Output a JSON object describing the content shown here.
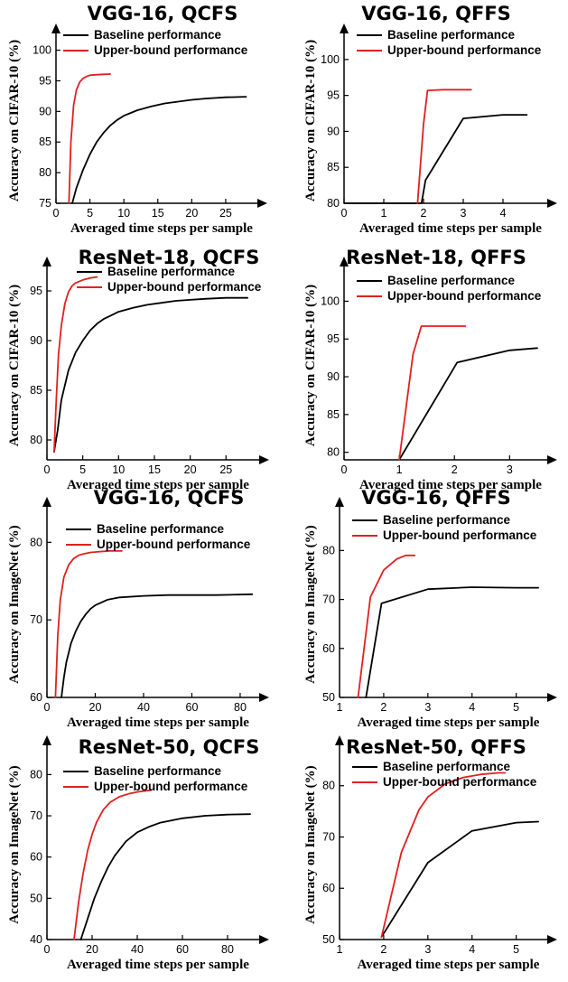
{
  "colors": {
    "baseline": "#000000",
    "upper_bound": "#e02020",
    "axis": "#000000"
  },
  "chart_data": [
    {
      "type": "line",
      "title": "VGG-16, QCFS",
      "xlabel": "Averaged time steps per sample",
      "ylabel": "Accuracy on CIFAR-10 (%)",
      "xlim": [
        0,
        29
      ],
      "ylim": [
        75,
        102
      ],
      "xticks": [
        0,
        5,
        10,
        15,
        20,
        25
      ],
      "yticks": [
        75,
        80,
        85,
        90,
        95,
        100
      ],
      "grid": false,
      "legend_position": "top",
      "series": [
        {
          "name": "Baseline performance",
          "color": "#000000",
          "x": [
            2.4,
            3,
            4,
            5,
            6,
            7,
            8,
            9,
            10,
            12,
            14,
            16,
            18,
            20,
            22,
            25,
            28
          ],
          "y": [
            75,
            77.5,
            80.5,
            83,
            85,
            86.5,
            87.7,
            88.6,
            89.3,
            90.2,
            90.8,
            91.3,
            91.6,
            91.9,
            92.1,
            92.3,
            92.4
          ]
        },
        {
          "name": "Upper-bound performance",
          "color": "#e02020",
          "x": [
            1.9,
            2.2,
            2.6,
            3.0,
            3.5,
            4.0,
            4.5,
            5.0,
            6.0,
            7.0,
            8.0
          ],
          "y": [
            75,
            85,
            91,
            93.5,
            94.8,
            95.4,
            95.7,
            95.9,
            96.0,
            96.05,
            96.1
          ]
        }
      ]
    },
    {
      "type": "line",
      "title": "VGG-16, QFFS",
      "xlabel": "Averaged time steps per sample",
      "ylabel": "Accuracy on CIFAR-10 (%)",
      "xlim": [
        0,
        5
      ],
      "ylim": [
        80,
        103
      ],
      "xticks": [
        0,
        1,
        2,
        3,
        4
      ],
      "yticks": [
        80,
        85,
        90,
        95,
        100
      ],
      "grid": false,
      "legend_position": "top",
      "series": [
        {
          "name": "Baseline performance",
          "color": "#000000",
          "x": [
            0,
            1.95,
            2.05,
            3,
            4,
            4.6
          ],
          "y": [
            80,
            80,
            83.2,
            91.8,
            92.3,
            92.3
          ]
        },
        {
          "name": "Upper-bound performance",
          "color": "#e02020",
          "x": [
            1.85,
            2.0,
            2.1,
            2.5,
            3.2
          ],
          "y": [
            80,
            91,
            95.7,
            95.8,
            95.8
          ]
        }
      ]
    },
    {
      "type": "line",
      "title": "ResNet-18, QCFS",
      "xlabel": "Averaged time steps per sample",
      "ylabel": "Accuracy on CIFAR-10 (%)",
      "xlim": [
        0,
        29
      ],
      "ylim": [
        78,
        97
      ],
      "xticks": [
        0,
        5,
        10,
        15,
        20,
        25
      ],
      "yticks": [
        80,
        85,
        90,
        95
      ],
      "grid": false,
      "legend_position": "top",
      "series": [
        {
          "name": "Baseline performance",
          "color": "#000000",
          "x": [
            1.0,
            1.5,
            2,
            3,
            4,
            5,
            6,
            7,
            8,
            10,
            12,
            14,
            16,
            18,
            20,
            22,
            25,
            28
          ],
          "y": [
            78.8,
            81,
            84,
            87,
            88.8,
            90,
            91,
            91.7,
            92.2,
            92.9,
            93.3,
            93.6,
            93.8,
            94.0,
            94.1,
            94.2,
            94.3,
            94.3
          ]
        },
        {
          "name": "Upper-bound performance",
          "color": "#e02020",
          "x": [
            1.0,
            1.3,
            1.6,
            2.0,
            2.5,
            3.0,
            3.5,
            4.0,
            5.0,
            6.0,
            7.0
          ],
          "y": [
            78.8,
            84,
            88.5,
            91.5,
            93.7,
            94.9,
            95.5,
            95.8,
            96.1,
            96.3,
            96.4
          ]
        }
      ]
    },
    {
      "type": "line",
      "title": "ResNet-18, QFFS",
      "xlabel": "Averaged time steps per sample",
      "ylabel": "Accuracy on CIFAR-10 (%)",
      "xlim": [
        0,
        3.6
      ],
      "ylim": [
        79,
        104
      ],
      "xticks": [
        0,
        1,
        2,
        3
      ],
      "yticks": [
        80,
        85,
        90,
        95,
        100
      ],
      "grid": false,
      "legend_position": "top",
      "series": [
        {
          "name": "Baseline performance",
          "color": "#000000",
          "x": [
            1.0,
            2.05,
            3.0,
            3.5
          ],
          "y": [
            79,
            91.9,
            93.5,
            93.8
          ]
        },
        {
          "name": "Upper-bound performance",
          "color": "#e02020",
          "x": [
            1.0,
            1.25,
            1.4,
            2.2
          ],
          "y": [
            79,
            93,
            96.7,
            96.7
          ]
        }
      ]
    },
    {
      "type": "line",
      "title": "VGG-16, QCFS",
      "xlabel": "Averaged time steps per sample",
      "ylabel": "Accuracy on ImageNet (%)",
      "xlim": [
        0,
        86
      ],
      "ylim": [
        60,
        84
      ],
      "xticks": [
        0,
        20,
        40,
        60,
        80
      ],
      "yticks": [
        60,
        70,
        80
      ],
      "grid": false,
      "legend_position": "top",
      "series": [
        {
          "name": "Baseline performance",
          "color": "#000000",
          "x": [
            6,
            7,
            8,
            10,
            12,
            14,
            16,
            18,
            20,
            25,
            30,
            40,
            50,
            60,
            70,
            85
          ],
          "y": [
            60,
            62.5,
            64.5,
            67,
            68.6,
            69.8,
            70.7,
            71.4,
            71.9,
            72.6,
            72.9,
            73.1,
            73.2,
            73.2,
            73.2,
            73.3
          ]
        },
        {
          "name": "Upper-bound performance",
          "color": "#e02020",
          "x": [
            3.5,
            4.5,
            5.5,
            7,
            9,
            11,
            13,
            15,
            18,
            22,
            26,
            31
          ],
          "y": [
            60,
            68,
            72.5,
            75.5,
            77.1,
            77.9,
            78.3,
            78.5,
            78.7,
            78.8,
            78.9,
            78.9
          ]
        }
      ]
    },
    {
      "type": "line",
      "title": "VGG-16, QFFS",
      "xlabel": "Averaged time steps per sample",
      "ylabel": "Accuracy on ImageNet (%)",
      "xlim": [
        1,
        5.6
      ],
      "ylim": [
        50,
        88
      ],
      "xticks": [
        1,
        2,
        3,
        4,
        5
      ],
      "yticks": [
        50,
        60,
        70,
        80
      ],
      "grid": false,
      "legend_position": "top",
      "series": [
        {
          "name": "Baseline performance",
          "color": "#000000",
          "x": [
            1.6,
            1.95,
            3.0,
            4.0,
            5.0,
            5.5
          ],
          "y": [
            50,
            69.2,
            72.1,
            72.5,
            72.4,
            72.4
          ]
        },
        {
          "name": "Upper-bound performance",
          "color": "#e02020",
          "x": [
            1.42,
            1.7,
            2.0,
            2.3,
            2.5,
            2.7
          ],
          "y": [
            50,
            70.5,
            76,
            78.3,
            79,
            79
          ]
        }
      ]
    },
    {
      "type": "line",
      "title": "ResNet-50, QCFS",
      "xlabel": "Averaged time steps per sample",
      "ylabel": "Accuracy on ImageNet (%)",
      "xlim": [
        0,
        92
      ],
      "ylim": [
        40,
        86
      ],
      "xticks": [
        0,
        20,
        40,
        60,
        80
      ],
      "yticks": [
        40,
        50,
        60,
        70,
        80
      ],
      "grid": false,
      "legend_position": "top",
      "series": [
        {
          "name": "Baseline performance",
          "color": "#000000",
          "x": [
            15,
            18,
            21,
            24,
            27,
            30,
            35,
            40,
            45,
            50,
            60,
            70,
            80,
            90
          ],
          "y": [
            40,
            45,
            50,
            54,
            57.5,
            60.3,
            63.8,
            66,
            67.3,
            68.3,
            69.4,
            70,
            70.3,
            70.4
          ]
        },
        {
          "name": "Upper-bound performance",
          "color": "#e02020",
          "x": [
            12,
            14,
            16,
            18,
            20,
            22,
            25,
            28,
            32,
            36,
            40,
            46
          ],
          "y": [
            40,
            49,
            56,
            61.5,
            65.5,
            68.5,
            71.5,
            73.3,
            74.6,
            75.3,
            75.8,
            76.2
          ]
        }
      ]
    },
    {
      "type": "line",
      "title": "ResNet-50, QFFS",
      "xlabel": "Averaged time steps per sample",
      "ylabel": "Accuracy on ImageNet (%)",
      "xlim": [
        1,
        5.6
      ],
      "ylim": [
        50,
        87
      ],
      "xticks": [
        1,
        2,
        3,
        4,
        5
      ],
      "yticks": [
        50,
        60,
        70,
        80
      ],
      "grid": false,
      "legend_position": "top",
      "series": [
        {
          "name": "Baseline performance",
          "color": "#000000",
          "x": [
            1.95,
            3.0,
            4.0,
            5.0,
            5.5
          ],
          "y": [
            50.5,
            65,
            71.2,
            72.8,
            73
          ]
        },
        {
          "name": "Upper-bound performance",
          "color": "#e02020",
          "x": [
            1.95,
            2.4,
            2.8,
            3.0,
            3.4,
            3.8,
            4.2,
            4.6,
            4.75
          ],
          "y": [
            50.5,
            67,
            75.3,
            77.8,
            80.4,
            81.6,
            82.2,
            82.5,
            82.5
          ]
        }
      ]
    }
  ]
}
